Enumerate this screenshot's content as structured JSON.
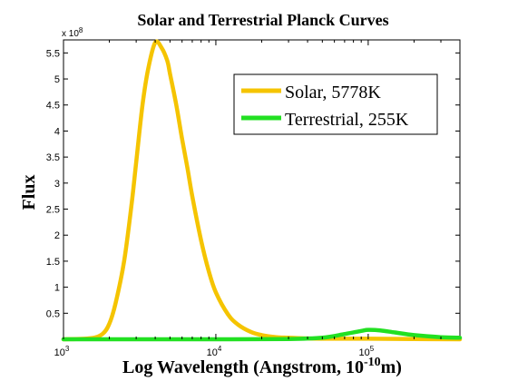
{
  "chart_data": {
    "type": "line",
    "title": "Solar and Terrestrial Planck Curves",
    "xlabel_main": "Log Wavelength (Angstrom, 10",
    "xlabel_exp": "-10",
    "xlabel_tail": "m)",
    "ylabel": "Flux",
    "y_multiplier": {
      "base": "x 10",
      "exp": "8"
    },
    "x_scale": "log",
    "xlim": [
      1000,
      400000
    ],
    "ylim": [
      0,
      5.75
    ],
    "x_ticks": [
      {
        "value": 1000,
        "base": "10",
        "exp": "3"
      },
      {
        "value": 10000,
        "base": "10",
        "exp": "4"
      },
      {
        "value": 100000,
        "base": "10",
        "exp": "5"
      }
    ],
    "y_ticks": [
      {
        "value": 0.5,
        "label": "0.5"
      },
      {
        "value": 1,
        "label": "1"
      },
      {
        "value": 1.5,
        "label": "1.5"
      },
      {
        "value": 2,
        "label": "2"
      },
      {
        "value": 2.5,
        "label": "2.5"
      },
      {
        "value": 3,
        "label": "3"
      },
      {
        "value": 3.5,
        "label": "3.5"
      },
      {
        "value": 4,
        "label": "4"
      },
      {
        "value": 4.5,
        "label": "4.5"
      },
      {
        "value": 5,
        "label": "5"
      },
      {
        "value": 5.5,
        "label": "5.5"
      }
    ],
    "legend_position": "top-right",
    "grid": false,
    "series": [
      {
        "name": "Solar, 5778K",
        "color": "#f5c400",
        "x": [
          1000,
          1500,
          1800,
          2000,
          2200,
          2500,
          2800,
          3000,
          3300,
          3600,
          4000,
          4400,
          4800,
          5000,
          5500,
          6000,
          6500,
          7000,
          8000,
          9000,
          10000,
          12000,
          14000,
          17000,
          20000,
          25000,
          30000,
          40000,
          60000,
          100000,
          200000,
          400000
        ],
        "values": [
          0.0,
          0.02,
          0.1,
          0.3,
          0.7,
          1.5,
          2.6,
          3.4,
          4.5,
          5.2,
          5.7,
          5.6,
          5.35,
          5.1,
          4.5,
          3.85,
          3.3,
          2.75,
          1.9,
          1.3,
          0.9,
          0.48,
          0.28,
          0.14,
          0.08,
          0.04,
          0.03,
          0.015,
          0.01,
          0.01,
          0.005,
          0.0
        ]
      },
      {
        "name": "Terrestrial, 255K",
        "color": "#22e022",
        "x": [
          1000,
          10000,
          30000,
          50000,
          70000,
          90000,
          100000,
          120000,
          150000,
          200000,
          300000,
          400000
        ],
        "values": [
          0.0,
          0.0,
          0.005,
          0.03,
          0.1,
          0.16,
          0.18,
          0.17,
          0.13,
          0.08,
          0.04,
          0.03
        ]
      }
    ]
  }
}
